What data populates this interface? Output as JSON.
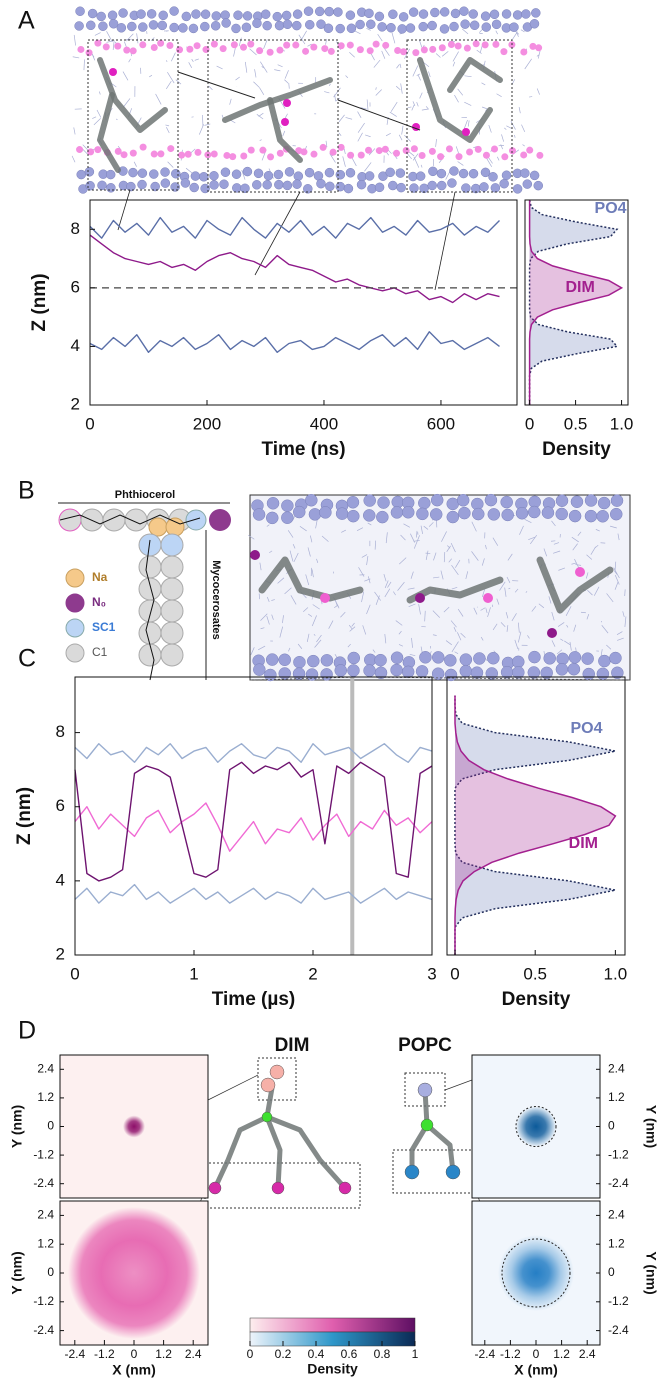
{
  "panel_labels": [
    "A",
    "B",
    "C",
    "D"
  ],
  "diagram": {
    "phthiocerol": "Phthiocerol",
    "mycocerosates": "Mycocerosates",
    "legend": [
      "Na",
      "N₀",
      "SC1",
      "C1"
    ],
    "molecules": [
      "DIM",
      "POPC"
    ]
  },
  "chart_data": [
    {
      "type": "line",
      "xlabel": "Time (ns)",
      "ylabel": "Z (nm)",
      "x": [
        0,
        20,
        40,
        60,
        80,
        100,
        120,
        140,
        160,
        180,
        200,
        220,
        240,
        260,
        280,
        300,
        320,
        340,
        360,
        380,
        400,
        420,
        440,
        460,
        480,
        500,
        520,
        540,
        560,
        580,
        600,
        620,
        640,
        660,
        680,
        700
      ],
      "xlim": [
        0,
        730
      ],
      "xticks": [
        0,
        200,
        400,
        600
      ],
      "ylim": [
        2,
        9
      ],
      "yticks": [
        2,
        4,
        6,
        8
      ],
      "hline": 6,
      "series": [
        {
          "color": "#5a6fa8",
          "values": [
            8.1,
            7.7,
            8.3,
            7.9,
            8.2,
            7.8,
            8.4,
            7.9,
            8.1,
            7.7,
            8.3,
            8.0,
            7.8,
            8.4,
            8.0,
            7.7,
            8.2,
            7.9,
            8.3,
            7.8,
            8.1,
            7.7,
            8.2,
            8.0,
            8.4,
            7.9,
            8.1,
            7.8,
            8.3,
            7.9,
            8.0,
            8.2,
            7.8,
            8.1,
            7.9,
            8.3
          ]
        },
        {
          "color": "#5a6fa8",
          "values": [
            4.1,
            3.9,
            4.3,
            4.0,
            4.4,
            3.8,
            4.2,
            4.0,
            4.3,
            3.9,
            4.1,
            4.4,
            3.9,
            4.2,
            4.0,
            4.3,
            3.8,
            4.1,
            4.2,
            3.9,
            4.0,
            4.3,
            4.1,
            3.9,
            4.2,
            4.4,
            4.0,
            4.3,
            3.9,
            4.5,
            4.1,
            4.2,
            3.9,
            4.1,
            4.3,
            4.0
          ]
        },
        {
          "color": "#8e1a8a",
          "values": [
            7.8,
            7.5,
            7.2,
            7.0,
            6.9,
            6.8,
            6.9,
            6.7,
            6.8,
            6.6,
            6.9,
            7.1,
            7.2,
            7.0,
            6.9,
            6.7,
            7.1,
            6.8,
            6.7,
            6.6,
            6.4,
            6.2,
            6.3,
            6.1,
            6.0,
            5.9,
            6.0,
            5.8,
            5.9,
            5.6,
            5.7,
            5.5,
            5.8,
            5.6,
            5.8,
            5.7
          ]
        }
      ]
    },
    {
      "type": "density",
      "xlabel": "Density",
      "y": [
        2,
        2.25,
        2.5,
        2.75,
        3,
        3.25,
        3.5,
        3.75,
        4,
        4.25,
        4.5,
        4.75,
        5,
        5.25,
        5.5,
        5.75,
        6,
        6.25,
        6.5,
        6.75,
        7,
        7.25,
        7.5,
        7.75,
        8,
        8.25,
        8.5,
        8.75,
        9
      ],
      "xlim": [
        -0.05,
        1.07
      ],
      "xticks": [
        0,
        0.5,
        {
          "value": 1,
          "label": "1.0"
        }
      ],
      "ylim": [
        2,
        9
      ],
      "series": [
        {
          "name": "PO4",
          "color": "#6d7cb8",
          "values": [
            0,
            0,
            0,
            0,
            0,
            0.018,
            0.135,
            0.51,
            0.95,
            0.88,
            0.41,
            0.095,
            0.011,
            0,
            0,
            0,
            0,
            0,
            0,
            0,
            0.011,
            0.095,
            0.41,
            0.88,
            0.95,
            0.51,
            0.135,
            0.018,
            0
          ]
        },
        {
          "name": "DIM",
          "color": "#a3208f",
          "values": [
            0,
            0,
            0,
            0,
            0,
            0,
            0,
            0,
            0,
            0,
            0.004,
            0.021,
            0.085,
            0.25,
            0.54,
            0.86,
            1,
            0.86,
            0.54,
            0.25,
            0.085,
            0.021,
            0.004,
            0,
            0,
            0,
            0,
            0,
            0
          ]
        }
      ]
    },
    {
      "type": "line",
      "xlabel": "Time (µs)",
      "ylabel": "Z (nm)",
      "x": [
        0,
        0.1,
        0.2,
        0.3,
        0.4,
        0.5,
        0.6,
        0.7,
        0.8,
        0.9,
        1,
        1.1,
        1.2,
        1.3,
        1.4,
        1.5,
        1.6,
        1.7,
        1.8,
        1.9,
        2,
        2.1,
        2.2,
        2.3,
        2.4,
        2.5,
        2.6,
        2.7,
        2.8,
        2.9,
        3
      ],
      "xlim": [
        0,
        3
      ],
      "xticks": [
        0,
        1,
        2,
        3
      ],
      "ylim": [
        2,
        9.5
      ],
      "yticks": [
        2,
        4,
        6,
        8
      ],
      "vline": 2.33,
      "series": [
        {
          "color": "#9aaed0",
          "values": [
            7.6,
            7.3,
            7.7,
            7.4,
            7.5,
            7.2,
            7.6,
            7.4,
            7.7,
            7.3,
            7.5,
            7.6,
            7.2,
            7.5,
            7.7,
            7.4,
            7.3,
            7.6,
            7.5,
            7.2,
            7.7,
            7.4,
            7.5,
            7.6,
            7.3,
            7.5,
            7.7,
            7.4,
            7.2,
            7.6,
            7.5
          ]
        },
        {
          "color": "#9aaed0",
          "values": [
            3.5,
            3.8,
            3.4,
            3.7,
            3.6,
            3.9,
            3.5,
            3.7,
            3.4,
            3.6,
            3.8,
            3.5,
            3.7,
            3.4,
            3.6,
            3.8,
            3.5,
            3.7,
            3.6,
            3.4,
            3.8,
            3.5,
            3.6,
            3.7,
            3.4,
            3.6,
            3.8,
            3.5,
            3.7,
            3.6,
            3.5
          ]
        },
        {
          "color": "#f06ad4",
          "values": [
            5.6,
            6.0,
            5.4,
            5.8,
            5.5,
            5.2,
            5.7,
            5.9,
            5.3,
            5.6,
            5.8,
            6.1,
            5.5,
            4.8,
            5.2,
            5.6,
            5.0,
            5.4,
            5.3,
            5.7,
            5.1,
            5.5,
            5.8,
            5.2,
            5.6,
            5.4,
            5.9,
            5.5,
            5.7,
            5.3,
            5.6
          ]
        },
        {
          "color": "#6e1470",
          "values": [
            7.0,
            4.2,
            4.0,
            4.1,
            4.3,
            6.9,
            7.1,
            7.0,
            6.8,
            5.5,
            4.2,
            4.1,
            4.3,
            7.0,
            7.2,
            6.9,
            7.1,
            7.0,
            7.2,
            6.8,
            7.0,
            5.0,
            7.1,
            6.9,
            7.2,
            7.0,
            6.8,
            4.2,
            4.1,
            6.9,
            7.1
          ]
        }
      ]
    },
    {
      "type": "density",
      "xlabel": "Density",
      "y": [
        2,
        2.25,
        2.5,
        2.75,
        3,
        3.25,
        3.5,
        3.75,
        4,
        4.25,
        4.5,
        4.75,
        5,
        5.25,
        5.5,
        5.75,
        6,
        6.25,
        6.5,
        6.75,
        7,
        7.25,
        7.5,
        7.75,
        8,
        8.25,
        8.5,
        8.75,
        9
      ],
      "xlim": [
        -0.05,
        1.06
      ],
      "xticks": [
        0,
        0.5,
        {
          "value": 1,
          "label": "1.0"
        }
      ],
      "ylim": [
        2,
        9.5
      ],
      "series": [
        {
          "name": "PO4",
          "color": "#6d7cb8",
          "values": [
            0,
            0,
            0,
            0,
            0.044,
            0.25,
            0.71,
            1,
            0.71,
            0.25,
            0.044,
            0.004,
            0,
            0,
            0,
            0,
            0,
            0,
            0,
            0.044,
            0.25,
            0.71,
            1,
            0.71,
            0.25,
            0.044,
            0.004,
            0,
            0
          ]
        },
        {
          "name": "DIM",
          "color": "#a3208f",
          "values": [
            0,
            0,
            0,
            0,
            0,
            0.002,
            0.007,
            0.02,
            0.05,
            0.12,
            0.23,
            0.4,
            0.61,
            0.81,
            0.96,
            1,
            0.91,
            0.73,
            0.52,
            0.33,
            0.18,
            0.086,
            0.037,
            0.014,
            0.005,
            0,
            0,
            0,
            0
          ]
        }
      ]
    },
    {
      "type": "heatmap",
      "ylabel": "Y (nm)",
      "xlim": [
        -3,
        3
      ],
      "ylim": [
        -3,
        3
      ],
      "yticks": [
        -2.4,
        -1.2,
        0,
        1.2,
        2.4
      ],
      "color": "#8e0f6a"
    },
    {
      "type": "heatmap",
      "xlabel": "X (nm)",
      "ylabel": "Y (nm)",
      "xlim": [
        -3,
        3
      ],
      "ylim": [
        -3,
        3
      ],
      "xticks": [
        -2.4,
        -1.2,
        0,
        1.2,
        2.4
      ],
      "yticks": [
        -2.4,
        -1.2,
        0,
        1.2,
        2.4
      ],
      "color": "#e0409f"
    },
    {
      "type": "heatmap",
      "ylabel": "Y (nm)",
      "xlim": [
        -3,
        3
      ],
      "ylim": [
        -3,
        3
      ],
      "yticks": [
        -2.4,
        -1.2,
        0,
        1.2,
        2.4
      ],
      "color": "#0c5a9a"
    },
    {
      "type": "heatmap",
      "xlabel": "X (nm)",
      "ylabel": "Y (nm)",
      "xlim": [
        -3,
        3
      ],
      "ylim": [
        -3,
        3
      ],
      "xticks": [
        -2.4,
        -1.2,
        0,
        1.2,
        2.4
      ],
      "yticks": [
        -2.4,
        -1.2,
        0,
        1.2,
        2.4
      ],
      "color": "#1a78c2"
    },
    {
      "type": "colorbar",
      "xlabel": "Density",
      "xlim": [
        0,
        1
      ],
      "xticks": [
        0,
        0.2,
        0.4,
        0.6,
        0.8,
        1
      ]
    }
  ]
}
